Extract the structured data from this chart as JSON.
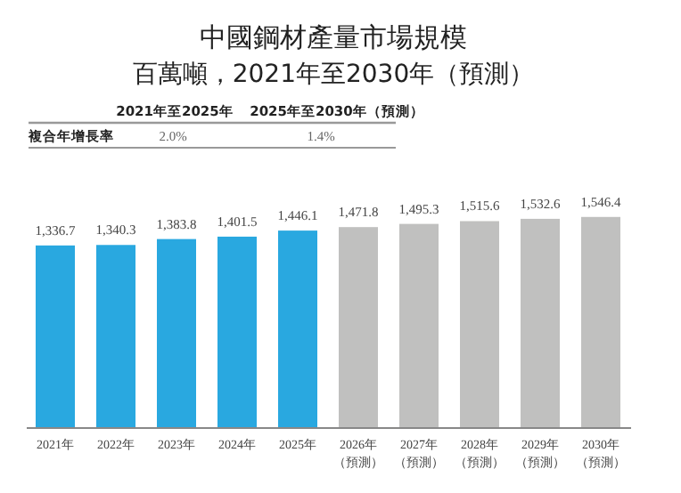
{
  "chart_data": {
    "type": "bar",
    "title": "中國鋼材產量市場規模",
    "subtitle": "百萬噸，2021年至2030年（預測）",
    "categories": [
      "2021年",
      "2022年",
      "2023年",
      "2024年",
      "2025年",
      "2026年（預測）",
      "2027年（預測）",
      "2028年（預測）",
      "2029年（預測）",
      "2030年（預測）"
    ],
    "values": [
      1336.7,
      1340.3,
      1383.8,
      1401.5,
      1446.1,
      1471.8,
      1495.3,
      1515.6,
      1532.6,
      1546.4
    ],
    "colors": [
      "#29a8e0",
      "#29a8e0",
      "#29a8e0",
      "#29a8e0",
      "#29a8e0",
      "#c0c0bf",
      "#c0c0bf",
      "#c0c0bf",
      "#c0c0bf",
      "#c0c0bf"
    ],
    "value_labels": [
      "1,336.7",
      "1,340.3",
      "1,383.8",
      "1,401.5",
      "1,446.1",
      "1,471.8",
      "1,495.3",
      "1,515.6",
      "1,532.6",
      "1,546.4"
    ],
    "annotations": [
      "2021年至2025年",
      "2025年至2030年（預測）",
      "複合年增長率",
      "2.0%",
      "1.4%"
    ]
  }
}
